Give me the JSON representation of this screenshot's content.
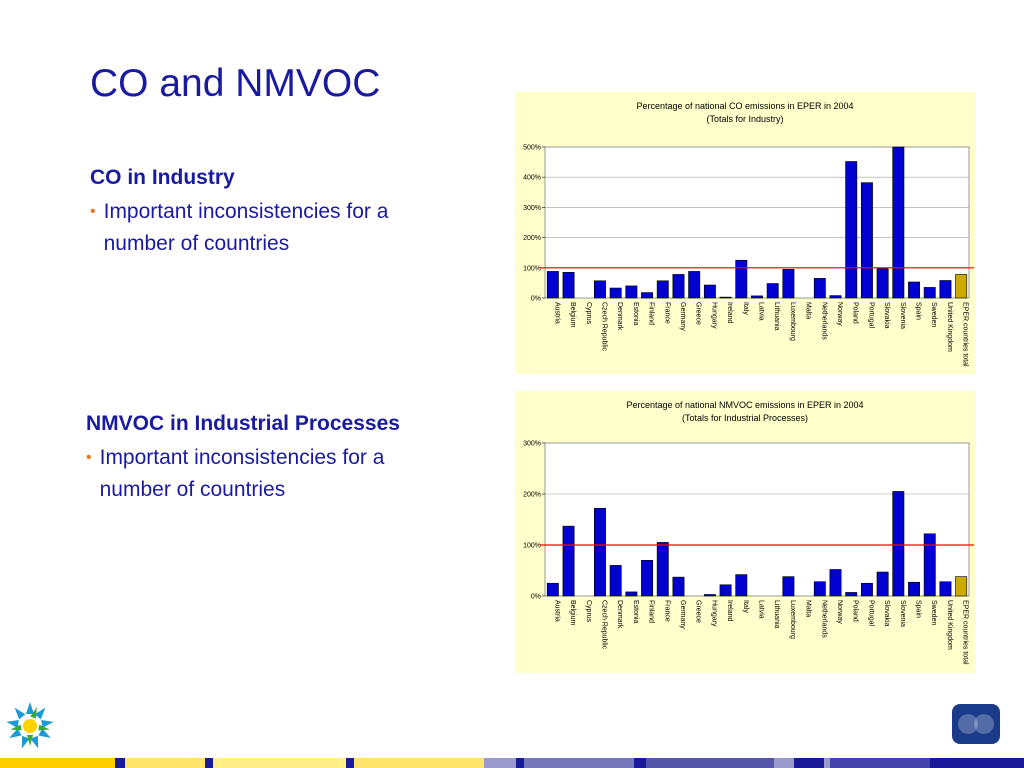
{
  "slide": {
    "title": "CO and NMVOC",
    "section_co": {
      "heading": "CO in Industry",
      "bullet": "Important inconsistencies for a number of countries"
    },
    "section_nmvoc": {
      "heading": "NMVOC in Industrial Processes",
      "bullet": "Important inconsistencies for a number of countries"
    }
  },
  "colors": {
    "title": "#1a1aa0",
    "bullet_dot": "#e87722",
    "bar": "#0000d0",
    "bar_total": "#ccaa00",
    "reference_line": "#ff0000",
    "panel_bg": "#ffffcc"
  },
  "chart_data": [
    {
      "type": "bar",
      "title": "Percentage of national CO emissions in EPER in 2004",
      "subtitle": "(Totals for Industry)",
      "categories": [
        "Austria",
        "Belgium",
        "Cyprus",
        "Czech Republic",
        "Denmark",
        "Estonia",
        "Finland",
        "France",
        "Germany",
        "Greece",
        "Hungary",
        "Ireland",
        "Italy",
        "Latvia",
        "Lithuania",
        "Luxembourg",
        "Malta",
        "Netherlands",
        "Norway",
        "Poland",
        "Portugal",
        "Slovakia",
        "Slovenia",
        "Spain",
        "Sweden",
        "United Kingdom",
        "EPER countries total"
      ],
      "values": [
        88,
        85,
        0,
        57,
        33,
        40,
        18,
        57,
        78,
        88,
        43,
        3,
        125,
        7,
        48,
        95,
        0,
        65,
        8,
        452,
        382,
        98,
        500,
        53,
        35,
        58,
        78
      ],
      "highlight_last": true,
      "ylim": [
        0,
        500
      ],
      "yticks": [
        "0%",
        "100%",
        "200%",
        "300%",
        "400%",
        "500%"
      ],
      "reference_line": 100,
      "grid": true
    },
    {
      "type": "bar",
      "title": "Percentage of national NMVOC emissions in EPER in 2004",
      "subtitle": "(Totals for Industrial Processes)",
      "categories": [
        "Austria",
        "Belgium",
        "Cyprus",
        "Czech Republic",
        "Denmark",
        "Estonia",
        "Finland",
        "France",
        "Germany",
        "Greece",
        "Hungary",
        "Ireland",
        "Italy",
        "Latvia",
        "Lithuania",
        "Luxembourg",
        "Malta",
        "Netherlands",
        "Norway",
        "Poland",
        "Portugal",
        "Slovakia",
        "Slovenia",
        "Spain",
        "Sweden",
        "United Kingdom",
        "EPER countries total"
      ],
      "values": [
        25,
        137,
        0,
        172,
        60,
        8,
        70,
        105,
        37,
        0,
        3,
        22,
        42,
        0,
        0,
        38,
        0,
        28,
        52,
        7,
        25,
        47,
        205,
        27,
        122,
        28,
        38
      ],
      "highlight_last": true,
      "ylim": [
        0,
        300
      ],
      "yticks": [
        "0%",
        "100%",
        "200%",
        "300%"
      ],
      "reference_line": 100,
      "grid": true
    }
  ]
}
